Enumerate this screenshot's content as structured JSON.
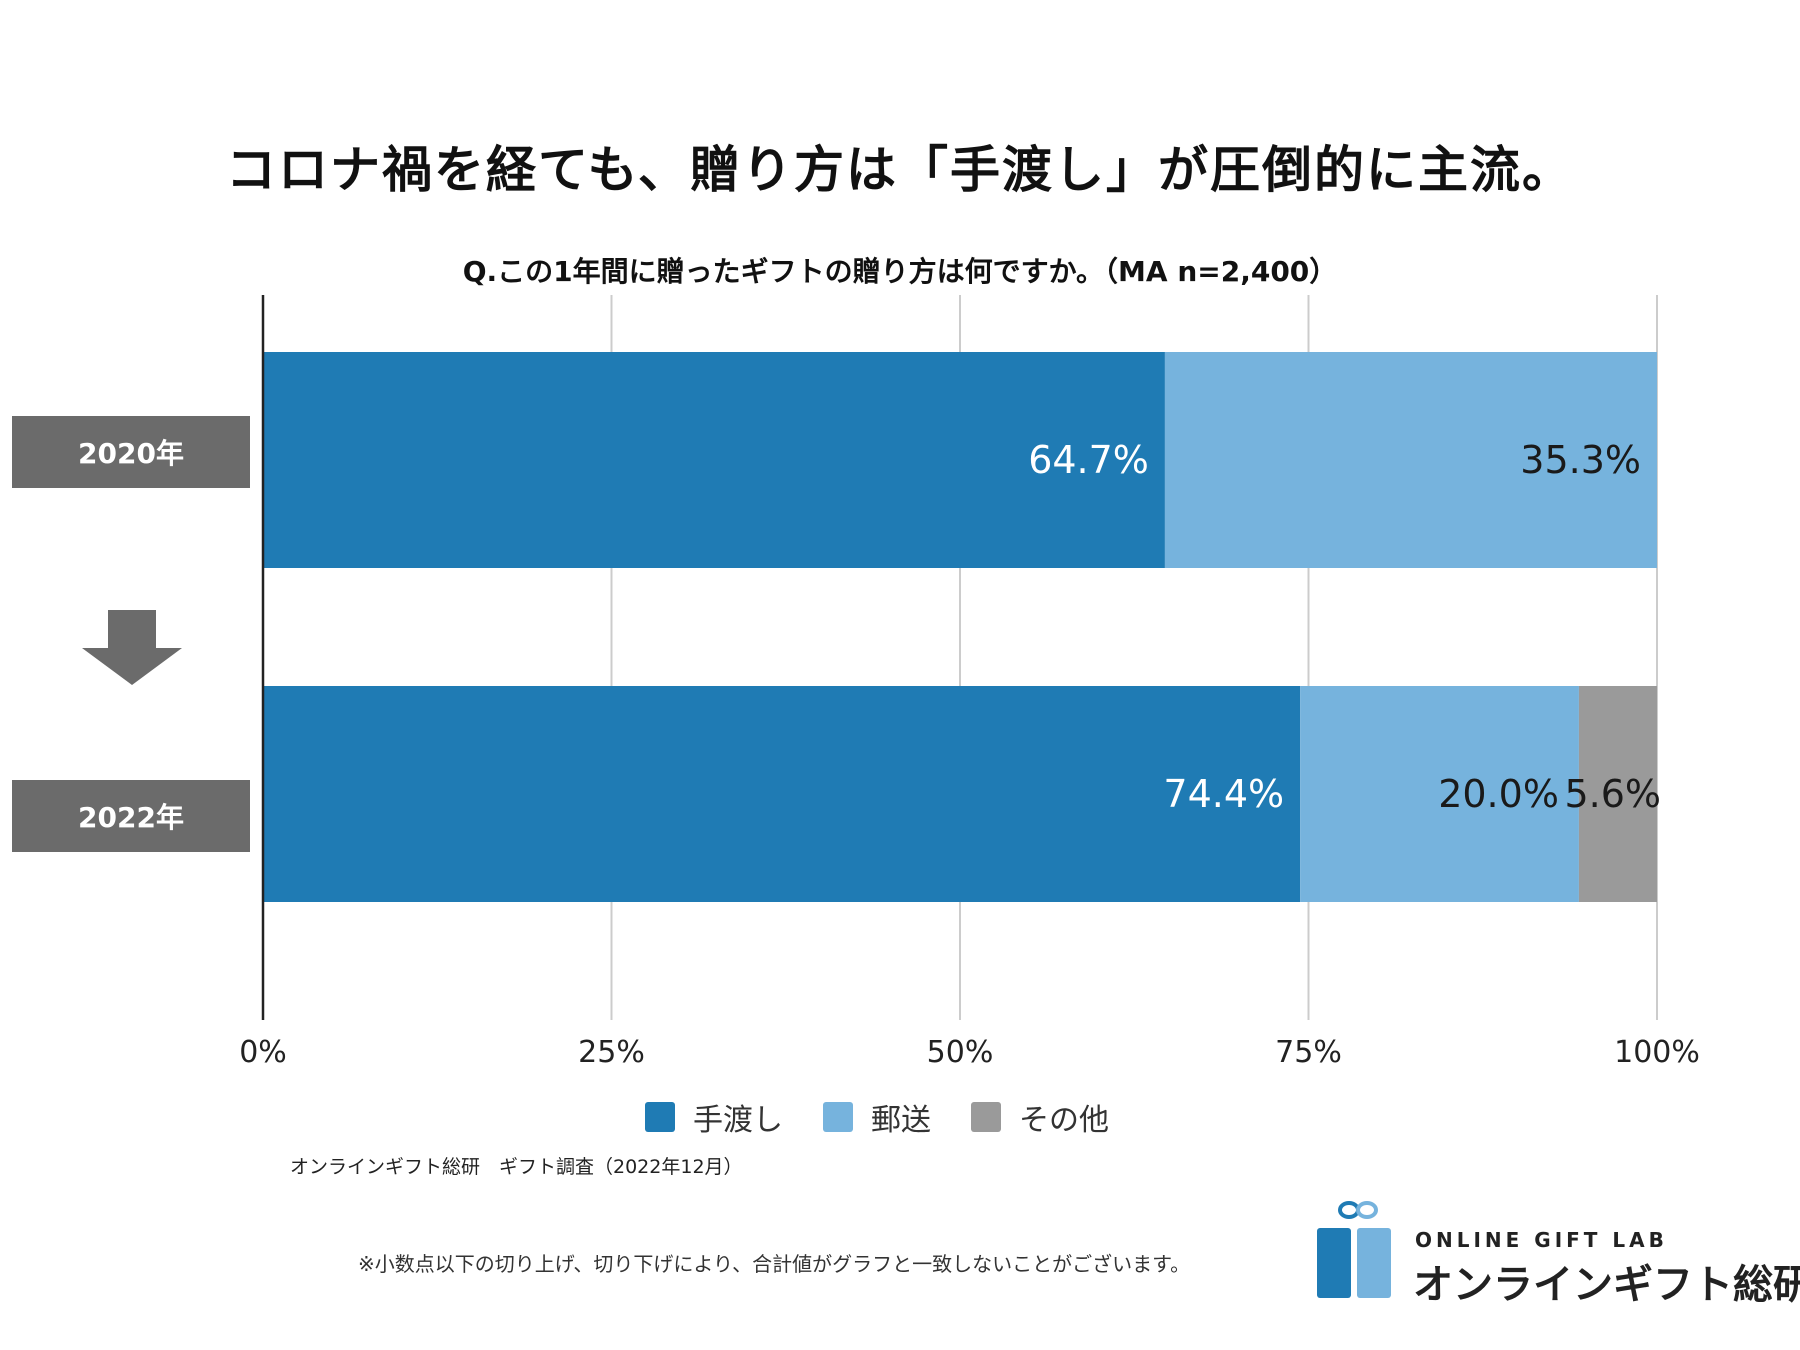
{
  "title": "コロナ禍を経ても、贈り方は「手渡し」が圧倒的に主流。",
  "subtitle": "Q.この1年間に贈ったギフトの贈り方は何ですか。（MA n=2,400）",
  "chart_data": {
    "type": "bar",
    "orientation": "horizontal",
    "stacked": true,
    "categories": [
      "2020年",
      "2022年"
    ],
    "series": [
      {
        "name": "手渡し",
        "values": [
          64.7,
          74.4
        ],
        "labels": [
          "64.7%",
          "74.4%"
        ],
        "color": "#1f7bb4",
        "label_color": "#ffffff"
      },
      {
        "name": "郵送",
        "values": [
          35.3,
          20.0
        ],
        "labels": [
          "35.3%",
          "20.0%"
        ],
        "color": "#76b3dd",
        "label_color": "#1a1a1a"
      },
      {
        "name": "その他",
        "values": [
          0,
          5.6
        ],
        "labels": [
          "",
          "5.6%"
        ],
        "color": "#9a9a9a",
        "label_color": "#1a1a1a"
      }
    ],
    "xlim": [
      0,
      100
    ],
    "xticks": [
      0,
      25,
      50,
      75,
      100
    ],
    "xtick_labels": [
      "0%",
      "25%",
      "50%",
      "75%",
      "100%"
    ],
    "grid": true,
    "legend": "bottom"
  },
  "source": "オンラインギフト総研　ギフト調査（2022年12月）",
  "note": "※小数点以下の切り上げ、切り下げにより、合計値がグラフと一致しないことがございます。",
  "logo": {
    "en": "ONLINE GIFT LAB",
    "ja": "オンラインギフト総研"
  },
  "colors": {
    "label_box": "#6b6b6b",
    "arrow": "#6b6b6b",
    "grid": "#cccccc"
  }
}
